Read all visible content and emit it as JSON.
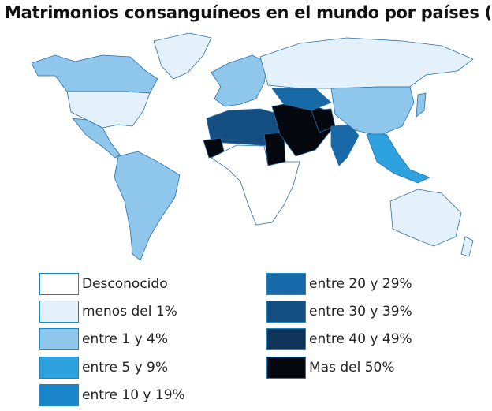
{
  "title": "Matrimonios consanguíneos en el mundo por países (%)",
  "legend": {
    "items": [
      {
        "label": "Desconocido",
        "color": "#ffffff"
      },
      {
        "label": "menos del 1%",
        "color": "#e4f1fa"
      },
      {
        "label": "entre 1 y 4%",
        "color": "#8ec6ec"
      },
      {
        "label": "entre 5 y 9%",
        "color": "#2ea2de"
      },
      {
        "label": "entre 10 y 19%",
        "color": "#1886c9"
      },
      {
        "label": "entre 20 y 29%",
        "color": "#176aa7"
      },
      {
        "label": "entre 30 y 39%",
        "color": "#154f81"
      },
      {
        "label": "entre 40 y 49%",
        "color": "#0f3359"
      },
      {
        "label": "Mas del 50%",
        "color": "#05080f"
      }
    ]
  }
}
